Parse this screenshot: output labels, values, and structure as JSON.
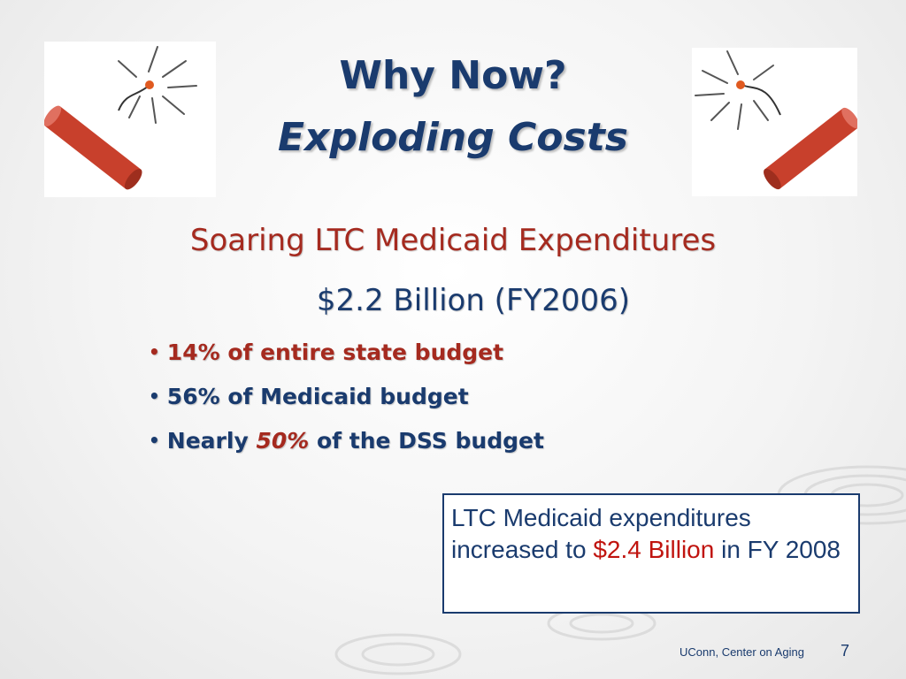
{
  "title": {
    "line1": "Why Now?",
    "line2": "Exploding Costs"
  },
  "subhead": "Soaring LTC Medicaid Expenditures",
  "amount": "$2.2 Billion (FY2006)",
  "bullets": [
    {
      "text": "14% of entire state budget"
    },
    {
      "text": "56% of Medicaid budget"
    },
    {
      "pre": "Nearly ",
      "pct": "50%",
      "post": " of the DSS budget"
    }
  ],
  "bullet_glyph": "•",
  "callout": {
    "pre": "LTC Medicaid expenditures increased to ",
    "highlight": "$2.4 Billion",
    "post": " in FY 2008"
  },
  "footer": {
    "org": "UConn, Center on Aging",
    "page": "7"
  },
  "icons": [
    "firecracker-icon",
    "firecracker-icon"
  ],
  "colors": {
    "title": "#1a3b6e",
    "accent_red": "#a52a1f",
    "highlight_red": "#c0140f",
    "firecracker": "#c8402c"
  }
}
